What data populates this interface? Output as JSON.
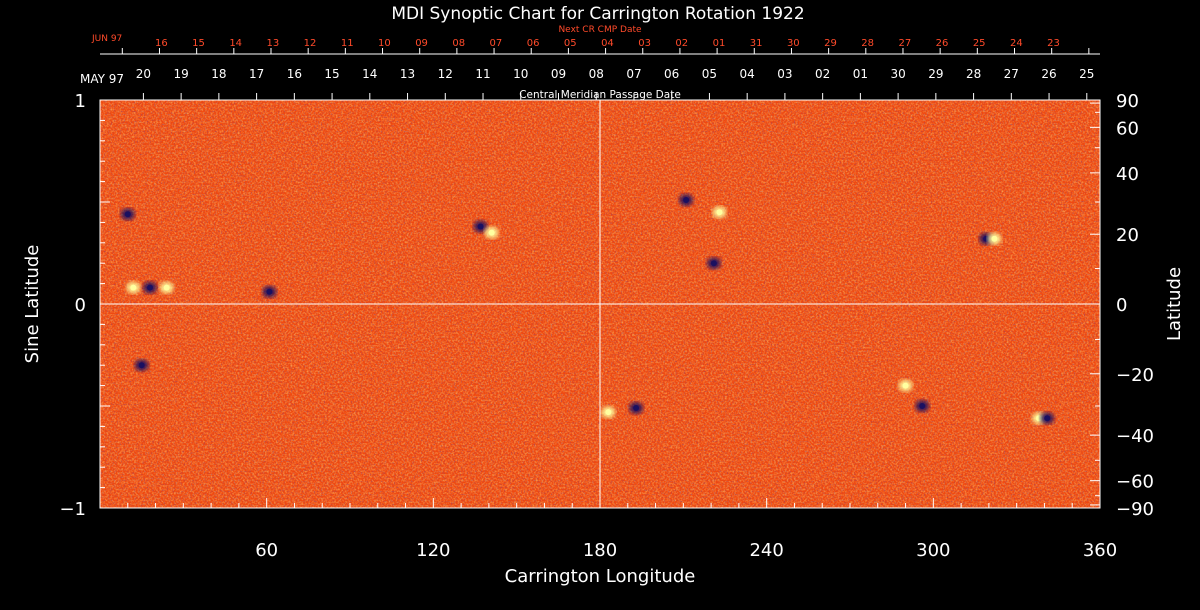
{
  "chart_data": {
    "type": "heatmap",
    "title": "MDI Synoptic Chart for Carrington Rotation 1922",
    "xlabel": "Carrington Longitude",
    "ylabel_left": "Sine Latitude",
    "ylabel_right": "Latitude",
    "xlim": [
      0,
      360
    ],
    "ylim": [
      -1,
      1
    ],
    "x_ticks": [
      "60",
      "120",
      "180",
      "240",
      "300",
      "360"
    ],
    "y_ticks_left": [
      "1",
      "0",
      "−1"
    ],
    "y_ticks_right": [
      "90",
      "60",
      "40",
      "20",
      "0",
      "−20",
      "−40",
      "−60",
      "−90"
    ],
    "top_axis": {
      "label": "Central Meridian Passage Date",
      "month_label": "MAY 97",
      "dates": [
        "20",
        "19",
        "18",
        "17",
        "16",
        "15",
        "14",
        "13",
        "12",
        "11",
        "10",
        "09",
        "08",
        "07",
        "06",
        "05",
        "04",
        "03",
        "02",
        "01",
        "30",
        "29",
        "28",
        "27",
        "26",
        "25"
      ]
    },
    "next_axis": {
      "label": "Next CR CMP Date",
      "month_label": "JUN 97",
      "dates": [
        "16",
        "15",
        "14",
        "13",
        "12",
        "11",
        "10",
        "09",
        "08",
        "07",
        "06",
        "05",
        "04",
        "03",
        "02",
        "01",
        "31",
        "30",
        "29",
        "28",
        "27",
        "26",
        "25",
        "24",
        "23"
      ]
    },
    "colors": {
      "background": "#000000",
      "field_base": "#f04a10",
      "positive_polarity": "#ffffa0",
      "negative_polarity": "#1a1060",
      "next_axis": "#ff4a2a"
    },
    "active_regions": [
      {
        "lon": 10,
        "sinlat": 0.44,
        "polarity": "negative"
      },
      {
        "lon": 12,
        "sinlat": 0.08,
        "polarity": "positive"
      },
      {
        "lon": 18,
        "sinlat": 0.08,
        "polarity": "negative"
      },
      {
        "lon": 24,
        "sinlat": 0.08,
        "polarity": "positive"
      },
      {
        "lon": 61,
        "sinlat": 0.06,
        "polarity": "negative"
      },
      {
        "lon": 137,
        "sinlat": 0.38,
        "polarity": "negative"
      },
      {
        "lon": 141,
        "sinlat": 0.35,
        "polarity": "positive"
      },
      {
        "lon": 211,
        "sinlat": 0.51,
        "polarity": "negative"
      },
      {
        "lon": 223,
        "sinlat": 0.45,
        "polarity": "positive"
      },
      {
        "lon": 221,
        "sinlat": 0.2,
        "polarity": "negative"
      },
      {
        "lon": 319,
        "sinlat": 0.32,
        "polarity": "negative"
      },
      {
        "lon": 322,
        "sinlat": 0.32,
        "polarity": "positive"
      },
      {
        "lon": 15,
        "sinlat": -0.3,
        "polarity": "negative"
      },
      {
        "lon": 183,
        "sinlat": -0.53,
        "polarity": "positive"
      },
      {
        "lon": 193,
        "sinlat": -0.51,
        "polarity": "negative"
      },
      {
        "lon": 290,
        "sinlat": -0.4,
        "polarity": "positive"
      },
      {
        "lon": 296,
        "sinlat": -0.5,
        "polarity": "negative"
      },
      {
        "lon": 338,
        "sinlat": -0.56,
        "polarity": "positive"
      },
      {
        "lon": 341,
        "sinlat": -0.56,
        "polarity": "negative"
      }
    ]
  }
}
